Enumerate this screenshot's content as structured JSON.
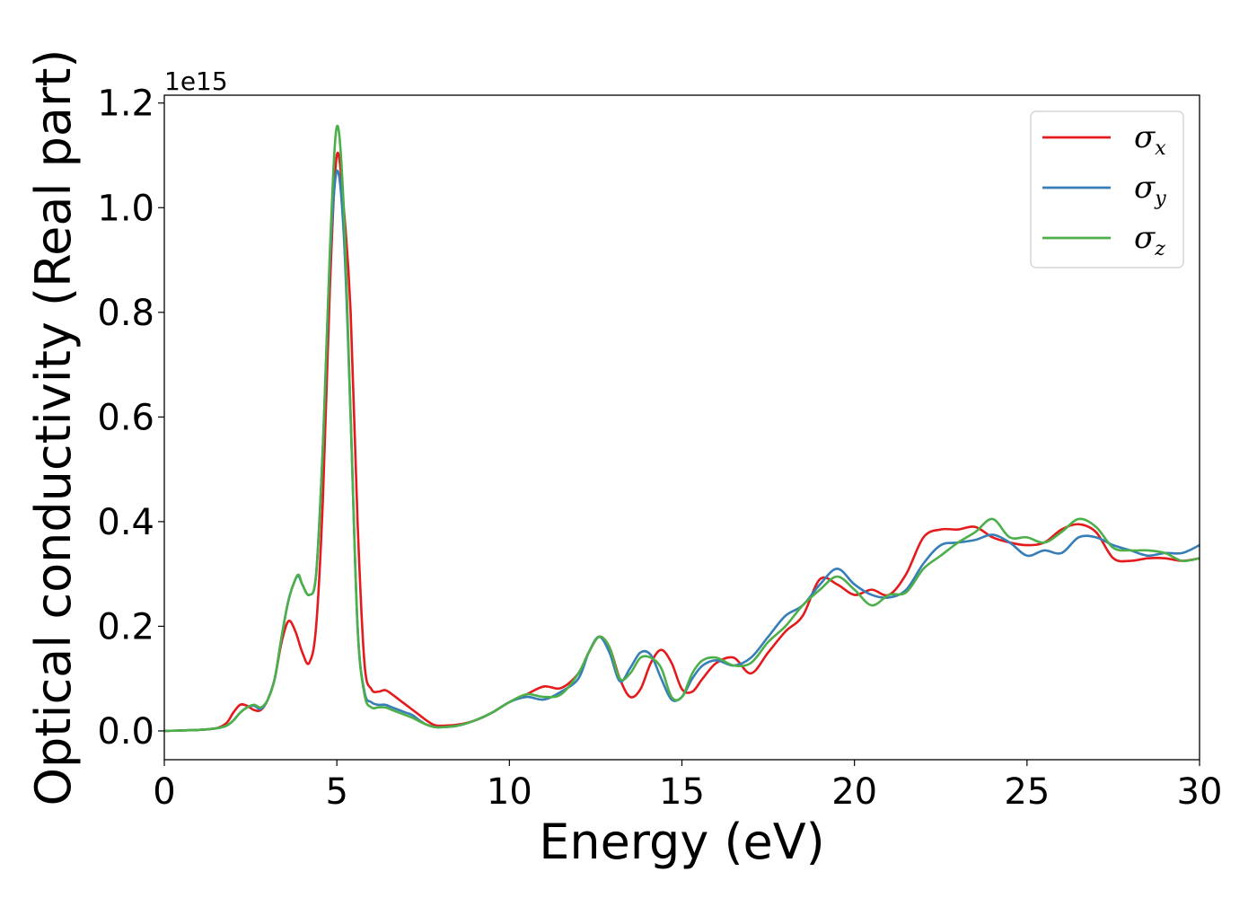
{
  "chart_data": {
    "type": "line",
    "xlabel": "Energy (eV)",
    "ylabel": "Optical conductivity (Real part)",
    "y_offset_label": "1e15",
    "xlim": [
      0,
      30
    ],
    "ylim": [
      -0.055,
      1.215
    ],
    "x_ticks": [
      0,
      5,
      10,
      15,
      20,
      25,
      30
    ],
    "x_tick_labels": [
      "0",
      "5",
      "10",
      "15",
      "20",
      "25",
      "30"
    ],
    "y_ticks": [
      0.0,
      0.2,
      0.4,
      0.6,
      0.8,
      1.0,
      1.2
    ],
    "y_tick_labels": [
      "0.0",
      "0.2",
      "0.4",
      "0.6",
      "0.8",
      "1.0",
      "1.2"
    ],
    "grid": false,
    "legend_position": "top-right",
    "series": [
      {
        "name": "σx",
        "symbol": "σ",
        "subscript": "x",
        "color": "#e41a1c",
        "x": [
          0,
          1,
          1.5,
          1.8,
          2.0,
          2.2,
          2.4,
          2.6,
          2.8,
          3.0,
          3.2,
          3.4,
          3.6,
          3.8,
          4.0,
          4.2,
          4.4,
          4.6,
          4.8,
          5.0,
          5.2,
          5.4,
          5.6,
          5.8,
          6.0,
          6.2,
          6.4,
          6.6,
          6.8,
          7.0,
          7.2,
          7.4,
          7.6,
          7.8,
          8.0,
          8.5,
          9.0,
          9.5,
          10.0,
          10.5,
          11.0,
          11.5,
          12.0,
          12.3,
          12.6,
          12.9,
          13.2,
          13.5,
          13.8,
          14.1,
          14.4,
          14.7,
          15.0,
          15.3,
          15.6,
          16.0,
          16.5,
          17.0,
          17.5,
          18.0,
          18.5,
          19.0,
          19.5,
          20.0,
          20.5,
          21.0,
          21.5,
          22.0,
          22.5,
          23.0,
          23.5,
          24.0,
          24.5,
          25.0,
          25.5,
          26.0,
          26.5,
          27.0,
          27.5,
          28.0,
          28.5,
          29.0,
          29.5,
          30.0
        ],
        "y": [
          0,
          0.002,
          0.005,
          0.015,
          0.035,
          0.05,
          0.048,
          0.04,
          0.04,
          0.06,
          0.1,
          0.17,
          0.21,
          0.19,
          0.15,
          0.13,
          0.2,
          0.45,
          0.85,
          1.1,
          1.0,
          0.8,
          0.4,
          0.13,
          0.08,
          0.075,
          0.078,
          0.07,
          0.06,
          0.05,
          0.04,
          0.03,
          0.02,
          0.012,
          0.01,
          0.012,
          0.02,
          0.035,
          0.055,
          0.07,
          0.085,
          0.082,
          0.11,
          0.15,
          0.18,
          0.16,
          0.1,
          0.065,
          0.08,
          0.13,
          0.155,
          0.13,
          0.08,
          0.075,
          0.1,
          0.13,
          0.14,
          0.11,
          0.15,
          0.19,
          0.22,
          0.29,
          0.28,
          0.26,
          0.27,
          0.26,
          0.3,
          0.37,
          0.385,
          0.385,
          0.39,
          0.37,
          0.36,
          0.355,
          0.36,
          0.385,
          0.395,
          0.38,
          0.33,
          0.325,
          0.33,
          0.33,
          0.325,
          0.33
        ]
      },
      {
        "name": "σy",
        "symbol": "σ",
        "subscript": "y",
        "color": "#377eb8",
        "x": [
          0,
          1,
          1.5,
          1.8,
          2.0,
          2.2,
          2.4,
          2.6,
          2.8,
          3.0,
          3.2,
          3.4,
          3.6,
          3.8,
          3.9,
          4.0,
          4.2,
          4.4,
          4.6,
          4.8,
          5.0,
          5.2,
          5.4,
          5.6,
          5.8,
          6.0,
          6.2,
          6.4,
          6.6,
          6.8,
          7.0,
          7.2,
          7.4,
          7.6,
          7.8,
          8.0,
          8.5,
          9.0,
          9.5,
          10.0,
          10.5,
          11.0,
          11.5,
          12.0,
          12.3,
          12.6,
          12.9,
          13.2,
          13.5,
          13.8,
          14.1,
          14.4,
          14.7,
          15.0,
          15.3,
          15.6,
          16.0,
          16.5,
          17.0,
          17.5,
          18.0,
          18.5,
          19.0,
          19.5,
          20.0,
          20.5,
          21.0,
          21.5,
          22.0,
          22.5,
          23.0,
          23.5,
          24.0,
          24.5,
          25.0,
          25.5,
          26.0,
          26.5,
          27.0,
          27.5,
          28.0,
          28.5,
          29.0,
          29.5,
          30.0
        ],
        "y": [
          0,
          0.002,
          0.005,
          0.01,
          0.02,
          0.035,
          0.045,
          0.048,
          0.042,
          0.06,
          0.1,
          0.18,
          0.25,
          0.29,
          0.295,
          0.28,
          0.26,
          0.3,
          0.55,
          0.9,
          1.07,
          0.95,
          0.6,
          0.2,
          0.075,
          0.055,
          0.05,
          0.05,
          0.045,
          0.04,
          0.035,
          0.03,
          0.02,
          0.012,
          0.008,
          0.007,
          0.01,
          0.02,
          0.035,
          0.055,
          0.065,
          0.06,
          0.075,
          0.1,
          0.15,
          0.18,
          0.15,
          0.095,
          0.12,
          0.15,
          0.145,
          0.1,
          0.06,
          0.065,
          0.1,
          0.125,
          0.135,
          0.125,
          0.14,
          0.18,
          0.22,
          0.24,
          0.28,
          0.31,
          0.28,
          0.26,
          0.255,
          0.27,
          0.32,
          0.355,
          0.36,
          0.365,
          0.375,
          0.36,
          0.335,
          0.345,
          0.34,
          0.37,
          0.37,
          0.355,
          0.345,
          0.335,
          0.34,
          0.34,
          0.355
        ]
      },
      {
        "name": "σz",
        "symbol": "σ",
        "subscript": "z",
        "color": "#4daf4a",
        "x": [
          0,
          1,
          1.5,
          1.8,
          2.0,
          2.2,
          2.4,
          2.6,
          2.8,
          3.0,
          3.2,
          3.4,
          3.6,
          3.8,
          3.9,
          4.0,
          4.2,
          4.4,
          4.6,
          4.8,
          5.0,
          5.2,
          5.4,
          5.6,
          5.8,
          6.0,
          6.2,
          6.4,
          6.6,
          6.8,
          7.0,
          7.2,
          7.4,
          7.6,
          7.8,
          8.0,
          8.5,
          9.0,
          9.5,
          10.0,
          10.5,
          11.0,
          11.5,
          12.0,
          12.3,
          12.6,
          12.9,
          13.2,
          13.5,
          13.8,
          14.1,
          14.4,
          14.7,
          15.0,
          15.3,
          15.6,
          16.0,
          16.5,
          17.0,
          17.5,
          18.0,
          18.5,
          19.0,
          19.5,
          20.0,
          20.5,
          21.0,
          21.5,
          22.0,
          22.5,
          23.0,
          23.5,
          24.0,
          24.5,
          25.0,
          25.5,
          26.0,
          26.5,
          27.0,
          27.5,
          28.0,
          28.5,
          29.0,
          29.5,
          30.0
        ],
        "y": [
          0,
          0.002,
          0.005,
          0.01,
          0.02,
          0.035,
          0.045,
          0.05,
          0.045,
          0.06,
          0.1,
          0.18,
          0.25,
          0.29,
          0.298,
          0.28,
          0.26,
          0.3,
          0.55,
          0.92,
          1.155,
          1.0,
          0.6,
          0.2,
          0.07,
          0.045,
          0.045,
          0.045,
          0.04,
          0.035,
          0.03,
          0.025,
          0.018,
          0.012,
          0.008,
          0.007,
          0.01,
          0.02,
          0.035,
          0.055,
          0.07,
          0.065,
          0.07,
          0.11,
          0.15,
          0.18,
          0.16,
          0.1,
          0.11,
          0.14,
          0.14,
          0.12,
          0.065,
          0.065,
          0.11,
          0.135,
          0.14,
          0.125,
          0.13,
          0.17,
          0.2,
          0.24,
          0.27,
          0.295,
          0.27,
          0.24,
          0.26,
          0.265,
          0.31,
          0.335,
          0.36,
          0.38,
          0.405,
          0.37,
          0.37,
          0.36,
          0.38,
          0.405,
          0.39,
          0.35,
          0.345,
          0.345,
          0.34,
          0.325,
          0.33
        ]
      }
    ]
  }
}
